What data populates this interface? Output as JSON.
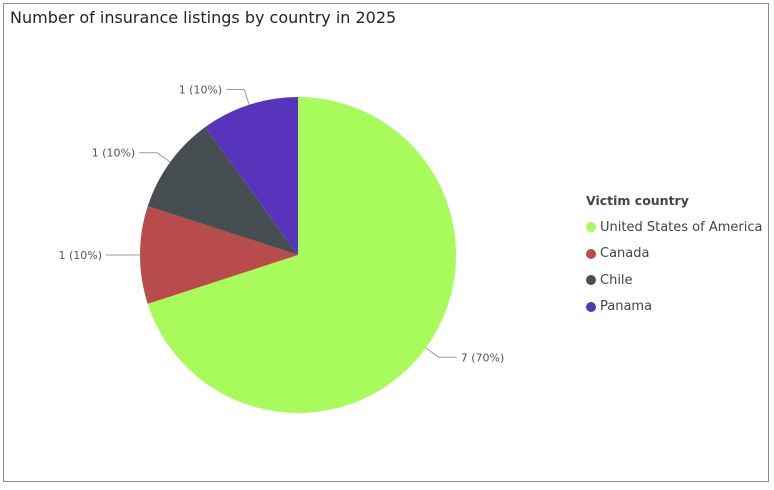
{
  "chart_data": {
    "type": "pie",
    "title": "Number of insurance listings by country in 2025",
    "legend_title": "Victim country",
    "legend_position": "right",
    "start_angle": "12 o'clock, clockwise",
    "slices": [
      {
        "name": "United States of America",
        "value": 7,
        "percent": 70,
        "label": "7 (70%)",
        "color": "#a8fb5a"
      },
      {
        "name": "Canada",
        "value": 1,
        "percent": 10,
        "label": "1 (10%)",
        "color": "#b84c4c"
      },
      {
        "name": "Chile",
        "value": 1,
        "percent": 10,
        "label": "1 (10%)",
        "color": "#474e51"
      },
      {
        "name": "Panama",
        "value": 1,
        "percent": 10,
        "label": "1 (10%)",
        "color": "#5834bd"
      }
    ]
  }
}
